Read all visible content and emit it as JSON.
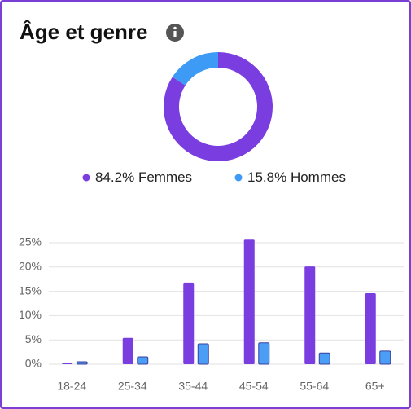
{
  "title": "Âge et genre",
  "chart_data": [
    {
      "type": "pie",
      "categories": [
        "Femmes",
        "Hommes"
      ],
      "values": [
        84.2,
        15.8
      ],
      "value_labels": [
        "84.2%",
        "15.8%"
      ],
      "colors": [
        "#7a3ee0",
        "#3d9bf5"
      ]
    },
    {
      "type": "bar",
      "categories": [
        "18-24",
        "25-34",
        "35-44",
        "45-54",
        "55-64",
        "65+"
      ],
      "series": [
        {
          "name": "Femmes",
          "color": "#7a3ee0",
          "values": [
            0.3,
            5.4,
            16.8,
            25.8,
            20.1,
            14.6
          ]
        },
        {
          "name": "Hommes",
          "color": "#4a9ef5",
          "values": [
            0.5,
            1.5,
            4.2,
            4.4,
            2.3,
            2.7
          ]
        }
      ],
      "ylim": [
        0,
        26
      ],
      "yticks": [
        {
          "value": 0,
          "label": "0%"
        },
        {
          "value": 5,
          "label": "5%"
        },
        {
          "value": 10,
          "label": "10%"
        },
        {
          "value": 15,
          "label": "15%"
        },
        {
          "value": 20,
          "label": "20%"
        },
        {
          "value": 25,
          "label": "25%"
        }
      ],
      "grid": true
    }
  ]
}
